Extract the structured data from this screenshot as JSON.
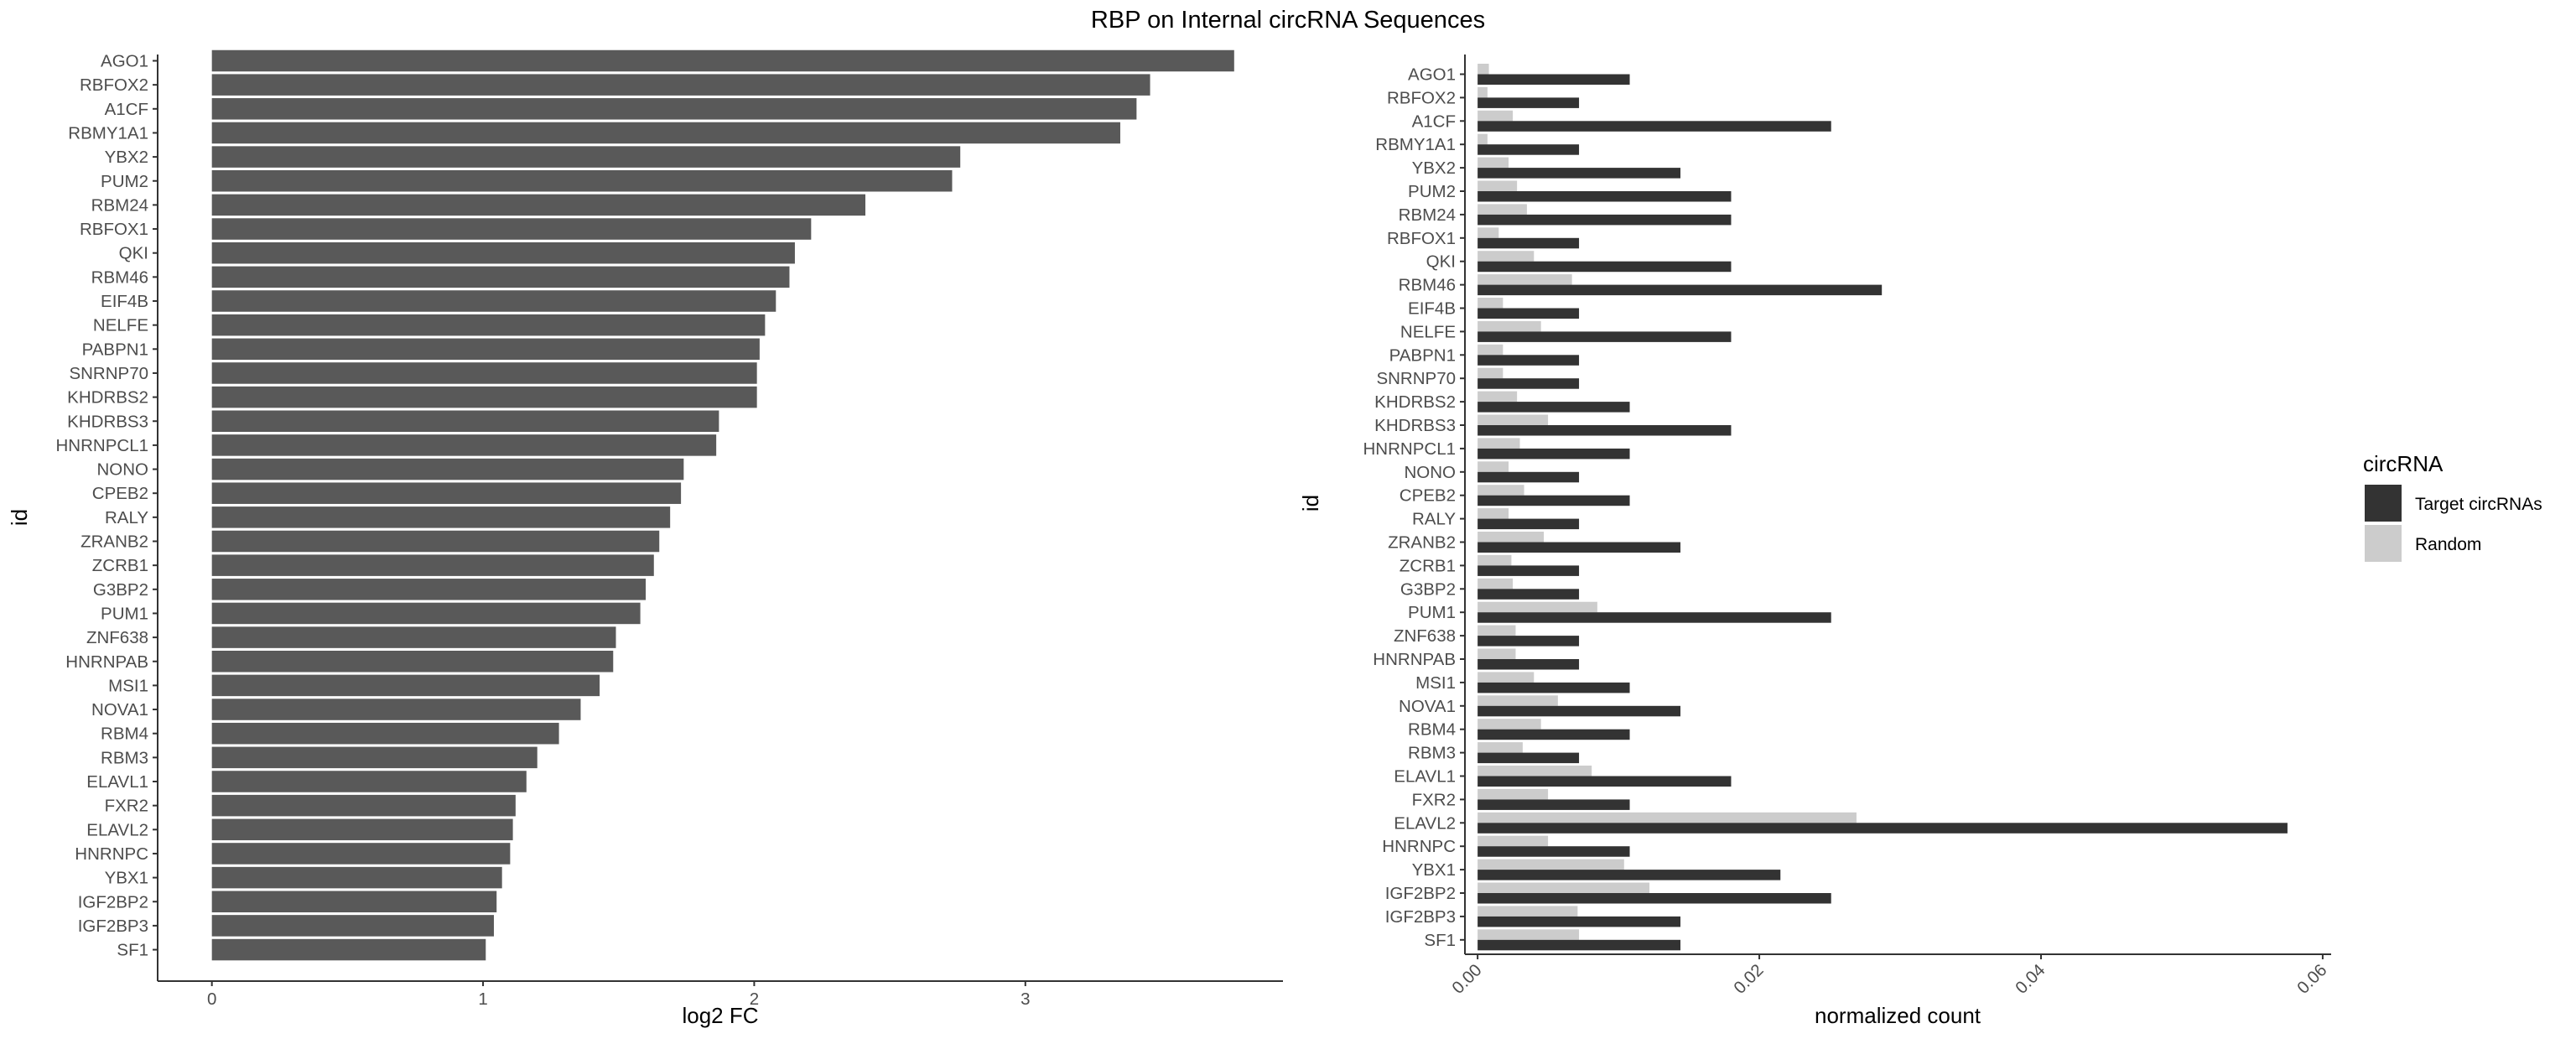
{
  "title": "RBP on Internal circRNA Sequences",
  "colors": {
    "bar": "#595959",
    "target": "#333333",
    "random": "#cccccc",
    "axis": "#333333"
  },
  "chart_data": [
    {
      "type": "bar",
      "orientation": "horizontal",
      "xlabel": "log2 FC",
      "ylabel": "id",
      "xlim": [
        -0.2,
        3.95
      ],
      "xticks": [
        "0",
        "1",
        "2",
        "3"
      ],
      "categories": [
        "AGO1",
        "RBFOX2",
        "A1CF",
        "RBMY1A1",
        "YBX2",
        "PUM2",
        "RBM24",
        "RBFOX1",
        "QKI",
        "RBM46",
        "EIF4B",
        "NELFE",
        "PABPN1",
        "SNRNP70",
        "KHDRBS2",
        "KHDRBS3",
        "HNRNPCL1",
        "NONO",
        "CPEB2",
        "RALY",
        "ZRANB2",
        "ZCRB1",
        "G3BP2",
        "PUM1",
        "ZNF638",
        "HNRNPAB",
        "MSI1",
        "NOVA1",
        "RBM4",
        "RBM3",
        "ELAVL1",
        "FXR2",
        "ELAVL2",
        "HNRNPC",
        "YBX1",
        "IGF2BP2",
        "IGF2BP3",
        "SF1"
      ],
      "values": [
        3.77,
        3.46,
        3.41,
        3.35,
        2.76,
        2.73,
        2.41,
        2.21,
        2.15,
        2.13,
        2.08,
        2.04,
        2.02,
        2.01,
        2.01,
        1.87,
        1.86,
        1.74,
        1.73,
        1.69,
        1.65,
        1.63,
        1.6,
        1.58,
        1.49,
        1.48,
        1.43,
        1.36,
        1.28,
        1.2,
        1.16,
        1.12,
        1.11,
        1.1,
        1.07,
        1.05,
        1.04,
        1.01
      ],
      "grid": false
    },
    {
      "type": "bar",
      "orientation": "horizontal",
      "grouped": true,
      "xlabel": "normalized count",
      "ylabel": "id",
      "xlim": [
        -0.0009,
        0.0606
      ],
      "xticks": [
        "0.00",
        "0.02",
        "0.04",
        "0.06"
      ],
      "categories": [
        "AGO1",
        "RBFOX2",
        "A1CF",
        "RBMY1A1",
        "YBX2",
        "PUM2",
        "RBM24",
        "RBFOX1",
        "QKI",
        "RBM46",
        "EIF4B",
        "NELFE",
        "PABPN1",
        "SNRNP70",
        "KHDRBS2",
        "KHDRBS3",
        "HNRNPCL1",
        "NONO",
        "CPEB2",
        "RALY",
        "ZRANB2",
        "ZCRB1",
        "G3BP2",
        "PUM1",
        "ZNF638",
        "HNRNPAB",
        "MSI1",
        "NOVA1",
        "RBM4",
        "RBM3",
        "ELAVL1",
        "FXR2",
        "ELAVL2",
        "HNRNPC",
        "YBX1",
        "IGF2BP2",
        "IGF2BP3",
        "SF1"
      ],
      "series": [
        {
          "name": "Target circRNAs",
          "values": [
            0.0108,
            0.0072,
            0.0251,
            0.0072,
            0.0144,
            0.018,
            0.018,
            0.0072,
            0.018,
            0.0287,
            0.0072,
            0.018,
            0.0072,
            0.0072,
            0.0108,
            0.018,
            0.0108,
            0.0072,
            0.0108,
            0.0072,
            0.0144,
            0.0072,
            0.0072,
            0.0251,
            0.0072,
            0.0072,
            0.0108,
            0.0144,
            0.0108,
            0.0072,
            0.018,
            0.0108,
            0.0575,
            0.0108,
            0.0215,
            0.0251,
            0.0144,
            0.0144
          ]
        },
        {
          "name": "Random",
          "values": [
            0.0008,
            0.0007,
            0.0025,
            0.0007,
            0.0022,
            0.0028,
            0.0035,
            0.0015,
            0.004,
            0.0067,
            0.0018,
            0.0045,
            0.0018,
            0.0018,
            0.0028,
            0.005,
            0.003,
            0.0022,
            0.0033,
            0.0022,
            0.0047,
            0.0024,
            0.0025,
            0.0085,
            0.0027,
            0.0027,
            0.004,
            0.0057,
            0.0045,
            0.0032,
            0.0081,
            0.005,
            0.0269,
            0.005,
            0.0104,
            0.0122,
            0.0071,
            0.0072
          ]
        }
      ],
      "legend": {
        "title": "circRNA",
        "placement": "right"
      },
      "grid": false
    }
  ]
}
